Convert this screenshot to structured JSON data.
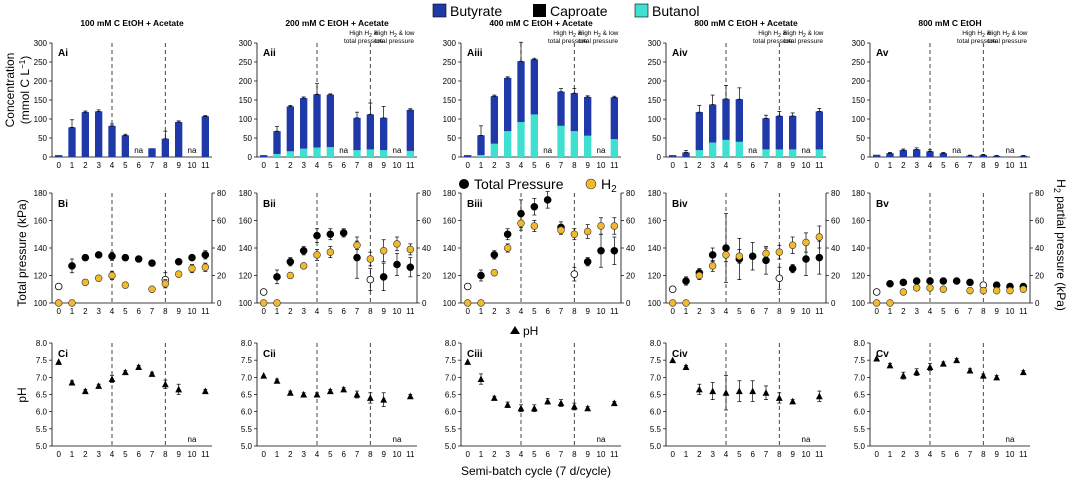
{
  "legend": {
    "row_a": [
      {
        "label": "Butyrate",
        "color": "#1f3aa8"
      },
      {
        "label": "Caproate",
        "color": "#000000"
      },
      {
        "label": "Butanol",
        "color": "#40e0d0"
      }
    ],
    "row_b": [
      {
        "label": "Total Pressure",
        "symbol": "circle-black"
      },
      {
        "label": "H",
        "sub": "2",
        "symbol": "circle-gold"
      }
    ],
    "row_c": [
      {
        "label": "pH",
        "symbol": "triangle"
      }
    ]
  },
  "labels": {
    "row_a_ylabel_1": "Concentration",
    "row_a_ylabel_2": "(mmol C L",
    "row_a_ylabel_sup": "−1",
    "row_a_ylabel_end": ")",
    "row_b_ylabel": "Total pressure (kPa)",
    "row_b_ylabel_right": "H",
    "row_b_ylabel_right_sub": "2",
    "row_b_ylabel_right_end": " partial pressure (kPa)",
    "row_c_ylabel": "pH",
    "xlabel": "Semi-batch cycle (7 d/cycle)",
    "note_mid_a": "High H",
    "note_mid_b": " &",
    "note_mid_c": "total pressure",
    "note_right_a": "High H",
    "note_right_b": " & low",
    "note_right_c": "total pressure",
    "na": "na"
  },
  "chart_data": [
    {
      "type": "stacked-bar",
      "title": "100 mM C EtOH + Acetate",
      "panel": "Ai",
      "categories": [
        0,
        1,
        2,
        3,
        4,
        5,
        6,
        7,
        8,
        9,
        10,
        11
      ],
      "series": [
        {
          "name": "Butyrate",
          "values": [
            5,
            78,
            118,
            120,
            82,
            57,
            null,
            23,
            48,
            92,
            null,
            107
          ]
        },
        {
          "name": "Caproate",
          "values": [
            0,
            0,
            0,
            0,
            0,
            0,
            null,
            0,
            0,
            0,
            null,
            0
          ]
        },
        {
          "name": "Butanol",
          "values": [
            0,
            0,
            0,
            0,
            0,
            0,
            null,
            0,
            0,
            0,
            null,
            0
          ]
        }
      ],
      "errors": [
        0,
        20,
        3,
        4,
        5,
        3,
        null,
        0,
        20,
        3,
        null,
        2
      ],
      "ylim": [
        0,
        300
      ],
      "yticks": [
        0,
        50,
        100,
        150,
        200,
        250,
        300
      ],
      "na": [
        6,
        10
      ],
      "show_notes": false
    },
    {
      "type": "stacked-bar",
      "title": "200 mM C EtOH + Acetate",
      "panel": "Aii",
      "categories": [
        0,
        1,
        2,
        3,
        4,
        5,
        6,
        7,
        8,
        9,
        10,
        11
      ],
      "series": [
        {
          "name": "Butyrate",
          "values": [
            5,
            60,
            118,
            133,
            140,
            138,
            null,
            85,
            92,
            85,
            null,
            108
          ]
        },
        {
          "name": "Caproate",
          "values": [
            0,
            0,
            0,
            0,
            0,
            0,
            null,
            0,
            0,
            0,
            null,
            0
          ]
        },
        {
          "name": "Butanol",
          "values": [
            0,
            8,
            15,
            22,
            25,
            26,
            null,
            18,
            20,
            18,
            null,
            16
          ]
        }
      ],
      "errors": [
        0,
        12,
        3,
        3,
        28,
        2,
        null,
        15,
        30,
        30,
        null,
        3
      ],
      "ylim": [
        0,
        300
      ],
      "yticks": [
        0,
        50,
        100,
        150,
        200,
        250,
        300
      ],
      "na": [
        6,
        10
      ],
      "show_notes": true
    },
    {
      "type": "stacked-bar",
      "title": "400 mM C EtOH + Acetate",
      "panel": "Aiii",
      "categories": [
        0,
        1,
        2,
        3,
        4,
        5,
        6,
        7,
        8,
        9,
        10,
        11
      ],
      "series": [
        {
          "name": "Butyrate",
          "values": [
            5,
            52,
            125,
            140,
            160,
            145,
            null,
            90,
            100,
            102,
            null,
            110
          ]
        },
        {
          "name": "Caproate",
          "values": [
            0,
            0,
            0,
            0,
            0,
            0,
            null,
            0,
            0,
            0,
            null,
            0
          ]
        },
        {
          "name": "Butanol",
          "values": [
            0,
            5,
            35,
            68,
            92,
            112,
            null,
            82,
            68,
            56,
            null,
            47
          ]
        }
      ],
      "errors": [
        0,
        25,
        3,
        3,
        50,
        3,
        null,
        8,
        12,
        3,
        null,
        3
      ],
      "ylim": [
        0,
        300
      ],
      "yticks": [
        0,
        50,
        100,
        150,
        200,
        250,
        300
      ],
      "na": [
        6,
        10
      ],
      "show_notes": true
    },
    {
      "type": "stacked-bar",
      "title": "800 mM C EtOH + Acetate",
      "panel": "Aiv",
      "categories": [
        0,
        1,
        2,
        3,
        4,
        5,
        6,
        7,
        8,
        9,
        10,
        11
      ],
      "series": [
        {
          "name": "Butyrate",
          "values": [
            5,
            12,
            100,
            100,
            108,
            112,
            null,
            82,
            88,
            88,
            null,
            100
          ]
        },
        {
          "name": "Caproate",
          "values": [
            0,
            0,
            0,
            0,
            0,
            0,
            null,
            0,
            0,
            0,
            null,
            0
          ]
        },
        {
          "name": "Butanol",
          "values": [
            0,
            0,
            18,
            38,
            45,
            40,
            null,
            20,
            20,
            20,
            null,
            20
          ]
        }
      ],
      "errors": [
        0,
        5,
        18,
        25,
        35,
        30,
        null,
        8,
        12,
        8,
        null,
        8
      ],
      "ylim": [
        0,
        300
      ],
      "yticks": [
        0,
        50,
        100,
        150,
        200,
        250,
        300
      ],
      "na": [
        6,
        10
      ],
      "show_notes": true
    },
    {
      "type": "stacked-bar",
      "title": "800 mM C EtOH",
      "panel": "Av",
      "categories": [
        0,
        1,
        2,
        3,
        4,
        5,
        6,
        7,
        8,
        9,
        10,
        11
      ],
      "series": [
        {
          "name": "Butyrate",
          "values": [
            6,
            10,
            18,
            20,
            15,
            10,
            null,
            4,
            5,
            3,
            null,
            3
          ]
        },
        {
          "name": "Caproate",
          "values": [
            0,
            0,
            0,
            0,
            0,
            0,
            null,
            0,
            0,
            0,
            null,
            0
          ]
        },
        {
          "name": "Butanol",
          "values": [
            0,
            0,
            0,
            0,
            0,
            0,
            null,
            0,
            0,
            0,
            null,
            0
          ]
        }
      ],
      "errors": [
        0,
        2,
        3,
        4,
        4,
        2,
        null,
        1,
        2,
        1,
        null,
        1
      ],
      "ylim": [
        0,
        300
      ],
      "yticks": [
        0,
        50,
        100,
        150,
        200,
        250,
        300
      ],
      "na": [
        6,
        10
      ],
      "show_notes": true
    },
    {
      "type": "scatter",
      "panel": "Bi",
      "x": [
        0,
        1,
        2,
        3,
        4,
        5,
        6,
        7,
        8,
        9,
        10,
        11
      ],
      "total_pressure": [
        112,
        127,
        133,
        135,
        134,
        133,
        132,
        129,
        117,
        130,
        133,
        135
      ],
      "tp_errors": [
        0,
        5,
        2,
        2,
        3,
        2,
        2,
        2,
        5,
        2,
        2,
        3
      ],
      "tp_open": [
        0,
        8
      ],
      "h2": [
        0,
        0,
        15,
        18,
        20,
        13,
        null,
        10,
        14,
        21,
        25,
        26
      ],
      "h2_errors": [
        0,
        0,
        2,
        2,
        3,
        2,
        null,
        2,
        3,
        2,
        3,
        3
      ],
      "ylim": [
        100,
        180
      ],
      "yticks": [
        100,
        120,
        140,
        160,
        180
      ],
      "y2lim": [
        0,
        80
      ],
      "y2ticks": [
        0,
        20,
        40,
        60,
        80
      ]
    },
    {
      "type": "scatter",
      "panel": "Bii",
      "x": [
        0,
        1,
        2,
        3,
        4,
        5,
        6,
        7,
        8,
        9,
        10,
        11
      ],
      "total_pressure": [
        108,
        119,
        130,
        138,
        149,
        150,
        151,
        133,
        117,
        119,
        128,
        126
      ],
      "tp_errors": [
        0,
        5,
        3,
        3,
        5,
        4,
        3,
        15,
        8,
        10,
        8,
        7
      ],
      "tp_open": [
        0,
        8
      ],
      "h2": [
        0,
        0,
        20,
        27,
        35,
        37,
        null,
        42,
        32,
        38,
        43,
        39
      ],
      "h2_errors": [
        0,
        0,
        2,
        2,
        4,
        4,
        null,
        3,
        5,
        8,
        5,
        4
      ],
      "ylim": [
        100,
        180
      ],
      "yticks": [
        100,
        120,
        140,
        160,
        180
      ],
      "y2lim": [
        0,
        80
      ],
      "y2ticks": [
        0,
        20,
        40,
        60,
        80
      ]
    },
    {
      "type": "scatter",
      "panel": "Biii",
      "x": [
        0,
        1,
        2,
        3,
        4,
        5,
        6,
        7,
        8,
        9,
        10,
        11
      ],
      "total_pressure": [
        112,
        120,
        135,
        150,
        165,
        170,
        175,
        155,
        121,
        130,
        138,
        138
      ],
      "tp_errors": [
        0,
        4,
        3,
        4,
        10,
        6,
        6,
        4,
        5,
        3,
        12,
        10
      ],
      "tp_open": [
        0,
        8
      ],
      "h2": [
        0,
        0,
        22,
        40,
        58,
        56,
        null,
        53,
        50,
        52,
        56,
        56
      ],
      "h2_errors": [
        0,
        0,
        2,
        3,
        5,
        4,
        null,
        3,
        4,
        5,
        6,
        6
      ],
      "ylim": [
        100,
        180
      ],
      "yticks": [
        100,
        120,
        140,
        160,
        180
      ],
      "y2lim": [
        0,
        80
      ],
      "y2ticks": [
        0,
        20,
        40,
        60,
        80
      ]
    },
    {
      "type": "scatter",
      "panel": "Biv",
      "x": [
        0,
        1,
        2,
        3,
        4,
        5,
        6,
        7,
        8,
        9,
        10,
        11
      ],
      "total_pressure": [
        110,
        116,
        122,
        135,
        140,
        132,
        134,
        131,
        118,
        125,
        132,
        133
      ],
      "tp_errors": [
        0,
        3,
        3,
        5,
        25,
        15,
        10,
        10,
        8,
        3,
        12,
        12
      ],
      "tp_open": [
        0,
        8
      ],
      "h2": [
        0,
        0,
        20,
        27,
        35,
        34,
        null,
        36,
        37,
        42,
        44,
        48
      ],
      "h2_errors": [
        0,
        0,
        3,
        4,
        5,
        5,
        null,
        4,
        5,
        6,
        7,
        8
      ],
      "ylim": [
        100,
        180
      ],
      "yticks": [
        100,
        120,
        140,
        160,
        180
      ],
      "y2lim": [
        0,
        80
      ],
      "y2ticks": [
        0,
        20,
        40,
        60,
        80
      ]
    },
    {
      "type": "scatter",
      "panel": "Bv",
      "x": [
        0,
        1,
        2,
        3,
        4,
        5,
        6,
        7,
        8,
        9,
        10,
        11
      ],
      "total_pressure": [
        108,
        114,
        115,
        116,
        116,
        116,
        116,
        115,
        113,
        113,
        112,
        112
      ],
      "tp_errors": [
        0,
        2,
        2,
        2,
        2,
        2,
        2,
        2,
        2,
        2,
        2,
        2
      ],
      "tp_open": [
        0,
        8
      ],
      "h2": [
        0,
        0,
        8,
        11,
        11,
        10,
        null,
        9,
        9,
        9,
        9,
        10
      ],
      "h2_errors": [
        0,
        0,
        1,
        1,
        1,
        1,
        null,
        1,
        1,
        1,
        1,
        1
      ],
      "ylim": [
        100,
        180
      ],
      "yticks": [
        100,
        120,
        140,
        160,
        180
      ],
      "y2lim": [
        0,
        80
      ],
      "y2ticks": [
        0,
        20,
        40,
        60,
        80
      ]
    },
    {
      "type": "scatter",
      "panel": "Ci",
      "x": [
        0,
        1,
        2,
        3,
        4,
        5,
        6,
        7,
        8,
        9,
        10,
        11
      ],
      "ph": [
        7.45,
        6.85,
        6.6,
        6.75,
        6.95,
        7.15,
        7.3,
        7.1,
        6.8,
        6.65,
        null,
        6.6
      ],
      "ph_errors": [
        0,
        0.05,
        0.05,
        0.05,
        0.1,
        0.05,
        0.05,
        0.05,
        0.12,
        0.15,
        null,
        0.05
      ],
      "ylim": [
        5.0,
        8.0
      ],
      "yticks": [
        "5.0",
        "5.5",
        "6.0",
        "6.5",
        "7.0",
        "7.5",
        "8.0"
      ],
      "na": [
        10
      ]
    },
    {
      "type": "scatter",
      "panel": "Cii",
      "x": [
        0,
        1,
        2,
        3,
        4,
        5,
        6,
        7,
        8,
        9,
        10,
        11
      ],
      "ph": [
        7.05,
        6.9,
        6.55,
        6.5,
        6.5,
        6.6,
        6.65,
        6.5,
        6.4,
        6.35,
        null,
        6.45
      ],
      "ph_errors": [
        0,
        0.05,
        0.05,
        0.05,
        0.05,
        0.05,
        0.05,
        0.1,
        0.15,
        0.2,
        null,
        0.05
      ],
      "ylim": [
        5.0,
        8.0
      ],
      "yticks": [
        "5.0",
        "5.5",
        "6.0",
        "6.5",
        "7.0",
        "7.5",
        "8.0"
      ],
      "na": [
        10
      ]
    },
    {
      "type": "scatter",
      "panel": "Ciii",
      "x": [
        0,
        1,
        2,
        3,
        4,
        5,
        6,
        7,
        8,
        9,
        10,
        11
      ],
      "ph": [
        7.45,
        6.95,
        6.4,
        6.2,
        6.1,
        6.1,
        6.3,
        6.25,
        6.15,
        6.1,
        null,
        6.25
      ],
      "ph_errors": [
        0,
        0.15,
        0.05,
        0.08,
        0.1,
        0.1,
        0.08,
        0.1,
        0.1,
        0.05,
        null,
        0.05
      ],
      "ylim": [
        5.0,
        8.0
      ],
      "yticks": [
        "5.0",
        "5.5",
        "6.0",
        "6.5",
        "7.0",
        "7.5",
        "8.0"
      ],
      "na": [
        10
      ]
    },
    {
      "type": "scatter",
      "panel": "Civ",
      "x": [
        0,
        1,
        2,
        3,
        4,
        5,
        6,
        7,
        8,
        9,
        10,
        11
      ],
      "ph": [
        7.5,
        7.3,
        6.65,
        6.6,
        6.55,
        6.6,
        6.6,
        6.55,
        6.4,
        6.3,
        null,
        6.45
      ],
      "ph_errors": [
        0,
        0.05,
        0.15,
        0.25,
        0.5,
        0.3,
        0.3,
        0.2,
        0.15,
        0.05,
        null,
        0.15
      ],
      "ylim": [
        5.0,
        8.0
      ],
      "yticks": [
        "5.0",
        "5.5",
        "6.0",
        "6.5",
        "7.0",
        "7.5",
        "8.0"
      ],
      "na": [
        10
      ]
    },
    {
      "type": "scatter",
      "panel": "Cv",
      "x": [
        0,
        1,
        2,
        3,
        4,
        5,
        6,
        7,
        8,
        9,
        10,
        11
      ],
      "ph": [
        7.55,
        7.35,
        7.05,
        7.15,
        7.3,
        7.4,
        7.5,
        7.2,
        7.05,
        7.0,
        null,
        7.15
      ],
      "ph_errors": [
        0,
        0.05,
        0.1,
        0.1,
        0.1,
        0.05,
        0.05,
        0.05,
        0.05,
        0.05,
        null,
        0.05
      ],
      "ylim": [
        5.0,
        8.0
      ],
      "yticks": [
        "5.0",
        "5.5",
        "6.0",
        "6.5",
        "7.0",
        "7.5",
        "8.0"
      ],
      "na": [
        10
      ]
    }
  ]
}
